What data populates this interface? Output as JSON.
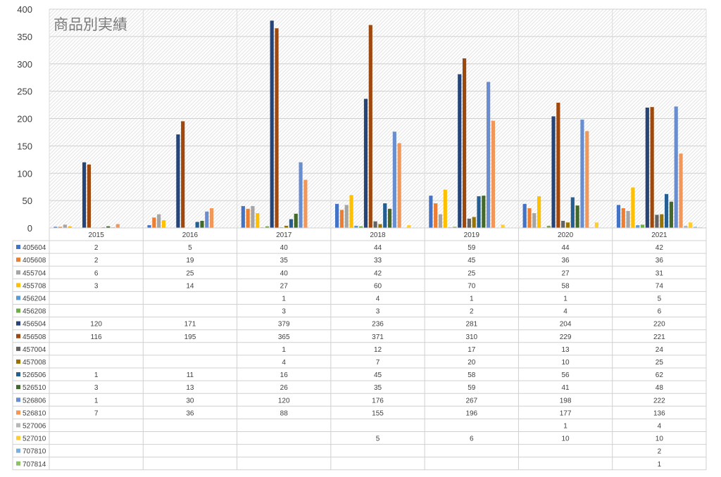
{
  "chart_data": {
    "type": "bar",
    "title": "商品別実績",
    "categories": [
      "2015",
      "2016",
      "2017",
      "2018",
      "2019",
      "2020",
      "2021"
    ],
    "ylim": [
      0,
      400
    ],
    "yticks": [
      0,
      50,
      100,
      150,
      200,
      250,
      300,
      350,
      400
    ],
    "grid": true,
    "legend": "data-table",
    "series": [
      {
        "name": "405604",
        "color": "#4472C4",
        "values": [
          2,
          5,
          40,
          44,
          59,
          44,
          42
        ]
      },
      {
        "name": "405608",
        "color": "#ED7D31",
        "values": [
          2,
          19,
          35,
          33,
          45,
          36,
          36
        ]
      },
      {
        "name": "455704",
        "color": "#A5A5A5",
        "values": [
          6,
          25,
          40,
          42,
          25,
          27,
          31
        ]
      },
      {
        "name": "455708",
        "color": "#FFC000",
        "values": [
          3,
          14,
          27,
          60,
          70,
          58,
          74
        ]
      },
      {
        "name": "456204",
        "color": "#5B9BD5",
        "values": [
          null,
          null,
          1,
          4,
          1,
          1,
          5
        ]
      },
      {
        "name": "456208",
        "color": "#70AD47",
        "values": [
          null,
          null,
          3,
          3,
          2,
          4,
          6
        ]
      },
      {
        "name": "456504",
        "color": "#264478",
        "values": [
          120,
          171,
          379,
          236,
          281,
          204,
          220
        ]
      },
      {
        "name": "456508",
        "color": "#9E480E",
        "values": [
          116,
          195,
          365,
          371,
          310,
          229,
          221
        ]
      },
      {
        "name": "457004",
        "color": "#636363",
        "values": [
          null,
          null,
          1,
          12,
          17,
          13,
          24
        ]
      },
      {
        "name": "457008",
        "color": "#997300",
        "values": [
          null,
          null,
          4,
          7,
          20,
          10,
          25
        ]
      },
      {
        "name": "526506",
        "color": "#255E91",
        "values": [
          1,
          11,
          16,
          45,
          58,
          56,
          62
        ]
      },
      {
        "name": "526510",
        "color": "#43682B",
        "values": [
          3,
          13,
          26,
          35,
          59,
          41,
          48
        ]
      },
      {
        "name": "526806",
        "color": "#698ED0",
        "values": [
          1,
          30,
          120,
          176,
          267,
          198,
          222
        ]
      },
      {
        "name": "526810",
        "color": "#F1975A",
        "values": [
          7,
          36,
          88,
          155,
          196,
          177,
          136
        ]
      },
      {
        "name": "527006",
        "color": "#B7B7B7",
        "values": [
          null,
          null,
          null,
          null,
          null,
          1,
          4
        ]
      },
      {
        "name": "527010",
        "color": "#FFCD33",
        "values": [
          null,
          null,
          null,
          5,
          6,
          10,
          10
        ]
      },
      {
        "name": "707810",
        "color": "#7CAFDD",
        "values": [
          null,
          null,
          null,
          null,
          null,
          null,
          2
        ]
      },
      {
        "name": "707814",
        "color": "#8CC168",
        "values": [
          null,
          null,
          null,
          null,
          null,
          null,
          1
        ]
      }
    ]
  }
}
